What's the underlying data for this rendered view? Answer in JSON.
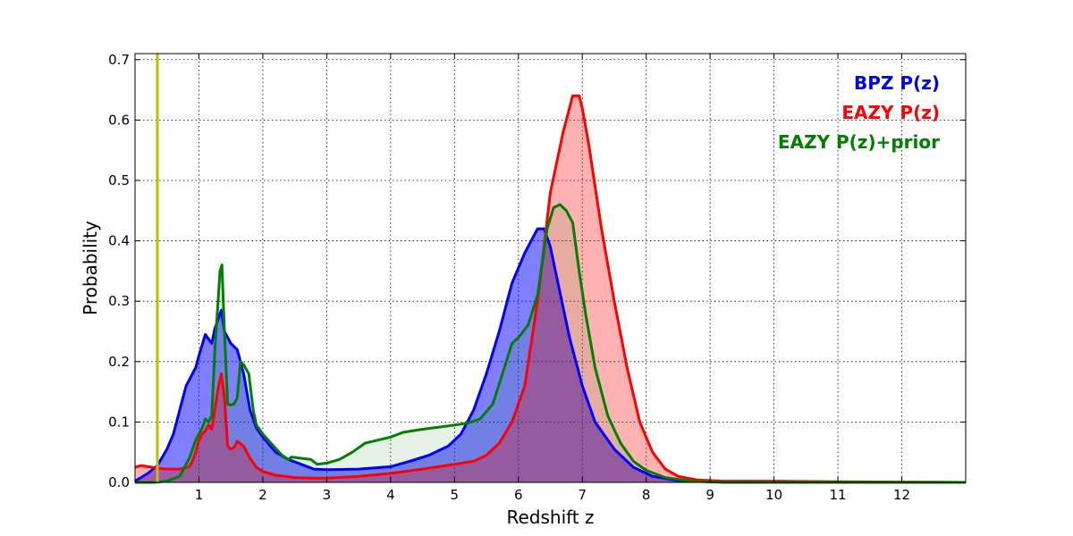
{
  "chart_data": {
    "type": "area",
    "title": "",
    "xlabel": "Redshift z",
    "ylabel": "Probability",
    "xlim": [
      0,
      13
    ],
    "ylim": [
      0,
      0.71
    ],
    "x_ticks": [
      1,
      2,
      3,
      4,
      5,
      6,
      7,
      8,
      9,
      10,
      11,
      12
    ],
    "y_ticks": [
      0.0,
      0.1,
      0.2,
      0.3,
      0.4,
      0.5,
      0.6,
      0.7
    ],
    "x_tick_labels": [
      "1",
      "2",
      "3",
      "4",
      "5",
      "6",
      "7",
      "8",
      "9",
      "10",
      "11",
      "12"
    ],
    "y_tick_labels": [
      "0.0",
      "0.1",
      "0.2",
      "0.3",
      "0.4",
      "0.5",
      "0.6",
      "0.7"
    ],
    "grid": true,
    "legend_position": "top-right",
    "vertical_line": {
      "x": 0.35,
      "color": "#bfbf00"
    },
    "series": [
      {
        "name": "BPZ P(z)",
        "color": "#0000ff",
        "fill": "#0000ff",
        "fill_opacity": 0.5,
        "points": [
          [
            0,
            0.002
          ],
          [
            0.2,
            0.015
          ],
          [
            0.35,
            0.028
          ],
          [
            0.5,
            0.055
          ],
          [
            0.6,
            0.08
          ],
          [
            0.7,
            0.12
          ],
          [
            0.8,
            0.16
          ],
          [
            0.9,
            0.18
          ],
          [
            0.95,
            0.19
          ],
          [
            1.0,
            0.21
          ],
          [
            1.1,
            0.245
          ],
          [
            1.2,
            0.23
          ],
          [
            1.25,
            0.255
          ],
          [
            1.3,
            0.27
          ],
          [
            1.35,
            0.285
          ],
          [
            1.4,
            0.25
          ],
          [
            1.45,
            0.24
          ],
          [
            1.5,
            0.23
          ],
          [
            1.6,
            0.22
          ],
          [
            1.7,
            0.18
          ],
          [
            1.8,
            0.12
          ],
          [
            1.9,
            0.09
          ],
          [
            2.0,
            0.075
          ],
          [
            2.2,
            0.05
          ],
          [
            2.4,
            0.038
          ],
          [
            2.6,
            0.03
          ],
          [
            2.8,
            0.022
          ],
          [
            3.0,
            0.021
          ],
          [
            3.5,
            0.022
          ],
          [
            4.0,
            0.026
          ],
          [
            4.3,
            0.035
          ],
          [
            4.6,
            0.045
          ],
          [
            4.9,
            0.06
          ],
          [
            5.1,
            0.08
          ],
          [
            5.3,
            0.12
          ],
          [
            5.5,
            0.18
          ],
          [
            5.7,
            0.25
          ],
          [
            5.9,
            0.33
          ],
          [
            6.1,
            0.38
          ],
          [
            6.3,
            0.42
          ],
          [
            6.4,
            0.42
          ],
          [
            6.5,
            0.39
          ],
          [
            6.6,
            0.34
          ],
          [
            6.8,
            0.24
          ],
          [
            7.0,
            0.16
          ],
          [
            7.2,
            0.1
          ],
          [
            7.5,
            0.055
          ],
          [
            7.8,
            0.025
          ],
          [
            8.1,
            0.01
          ],
          [
            8.5,
            0.003
          ],
          [
            9,
            0.001
          ],
          [
            13,
            0
          ]
        ]
      },
      {
        "name": "EAZY P(z)",
        "color": "#ff0000",
        "fill": "#ff0000",
        "fill_opacity": 0.3,
        "points": [
          [
            0,
            0.025
          ],
          [
            0.1,
            0.028
          ],
          [
            0.2,
            0.026
          ],
          [
            0.35,
            0.024
          ],
          [
            0.5,
            0.022
          ],
          [
            0.7,
            0.022
          ],
          [
            0.85,
            0.026
          ],
          [
            0.9,
            0.035
          ],
          [
            0.95,
            0.05
          ],
          [
            1.0,
            0.07
          ],
          [
            1.05,
            0.08
          ],
          [
            1.1,
            0.085
          ],
          [
            1.15,
            0.095
          ],
          [
            1.2,
            0.088
          ],
          [
            1.25,
            0.12
          ],
          [
            1.3,
            0.155
          ],
          [
            1.35,
            0.18
          ],
          [
            1.4,
            0.14
          ],
          [
            1.45,
            0.06
          ],
          [
            1.5,
            0.055
          ],
          [
            1.55,
            0.058
          ],
          [
            1.6,
            0.068
          ],
          [
            1.7,
            0.06
          ],
          [
            1.8,
            0.04
          ],
          [
            1.9,
            0.025
          ],
          [
            2.0,
            0.018
          ],
          [
            2.2,
            0.012
          ],
          [
            2.5,
            0.008
          ],
          [
            2.8,
            0.007
          ],
          [
            3.0,
            0.007
          ],
          [
            3.5,
            0.01
          ],
          [
            4.0,
            0.015
          ],
          [
            4.5,
            0.022
          ],
          [
            5.0,
            0.03
          ],
          [
            5.3,
            0.035
          ],
          [
            5.5,
            0.045
          ],
          [
            5.7,
            0.065
          ],
          [
            5.9,
            0.1
          ],
          [
            6.1,
            0.16
          ],
          [
            6.3,
            0.3
          ],
          [
            6.5,
            0.48
          ],
          [
            6.7,
            0.58
          ],
          [
            6.85,
            0.64
          ],
          [
            6.95,
            0.64
          ],
          [
            7.0,
            0.62
          ],
          [
            7.1,
            0.56
          ],
          [
            7.3,
            0.42
          ],
          [
            7.5,
            0.3
          ],
          [
            7.7,
            0.19
          ],
          [
            7.9,
            0.1
          ],
          [
            8.1,
            0.05
          ],
          [
            8.3,
            0.022
          ],
          [
            8.5,
            0.01
          ],
          [
            8.8,
            0.004
          ],
          [
            9.2,
            0.002
          ],
          [
            10,
            0.002
          ],
          [
            11,
            0.001
          ],
          [
            13,
            0
          ]
        ]
      },
      {
        "name": "EAZY P(z)+prior",
        "color": "#008000",
        "fill": "#008000",
        "fill_opacity": 0.1,
        "points": [
          [
            0,
            0
          ],
          [
            0.3,
            0
          ],
          [
            0.5,
            0.002
          ],
          [
            0.7,
            0.01
          ],
          [
            0.85,
            0.04
          ],
          [
            0.95,
            0.07
          ],
          [
            1.05,
            0.09
          ],
          [
            1.1,
            0.105
          ],
          [
            1.15,
            0.1
          ],
          [
            1.2,
            0.11
          ],
          [
            1.25,
            0.22
          ],
          [
            1.3,
            0.3
          ],
          [
            1.33,
            0.35
          ],
          [
            1.36,
            0.36
          ],
          [
            1.4,
            0.25
          ],
          [
            1.45,
            0.13
          ],
          [
            1.5,
            0.128
          ],
          [
            1.55,
            0.13
          ],
          [
            1.6,
            0.14
          ],
          [
            1.65,
            0.2
          ],
          [
            1.7,
            0.195
          ],
          [
            1.78,
            0.18
          ],
          [
            1.85,
            0.12
          ],
          [
            1.9,
            0.095
          ],
          [
            2.0,
            0.08
          ],
          [
            2.1,
            0.068
          ],
          [
            2.3,
            0.045
          ],
          [
            2.4,
            0.038
          ],
          [
            2.45,
            0.042
          ],
          [
            2.6,
            0.04
          ],
          [
            2.75,
            0.038
          ],
          [
            2.85,
            0.03
          ],
          [
            3.0,
            0.032
          ],
          [
            3.2,
            0.038
          ],
          [
            3.4,
            0.05
          ],
          [
            3.6,
            0.065
          ],
          [
            3.8,
            0.07
          ],
          [
            4.0,
            0.075
          ],
          [
            4.2,
            0.083
          ],
          [
            4.5,
            0.088
          ],
          [
            4.8,
            0.092
          ],
          [
            5.0,
            0.095
          ],
          [
            5.2,
            0.098
          ],
          [
            5.4,
            0.105
          ],
          [
            5.6,
            0.13
          ],
          [
            5.75,
            0.18
          ],
          [
            5.9,
            0.23
          ],
          [
            6.0,
            0.24
          ],
          [
            6.15,
            0.26
          ],
          [
            6.3,
            0.31
          ],
          [
            6.45,
            0.42
          ],
          [
            6.55,
            0.455
          ],
          [
            6.65,
            0.46
          ],
          [
            6.75,
            0.45
          ],
          [
            6.85,
            0.43
          ],
          [
            6.95,
            0.35
          ],
          [
            7.05,
            0.28
          ],
          [
            7.2,
            0.19
          ],
          [
            7.4,
            0.11
          ],
          [
            7.6,
            0.065
          ],
          [
            7.8,
            0.035
          ],
          [
            8.0,
            0.02
          ],
          [
            8.3,
            0.008
          ],
          [
            8.7,
            0.002
          ],
          [
            9.2,
            0
          ],
          [
            13,
            0
          ]
        ]
      }
    ]
  }
}
